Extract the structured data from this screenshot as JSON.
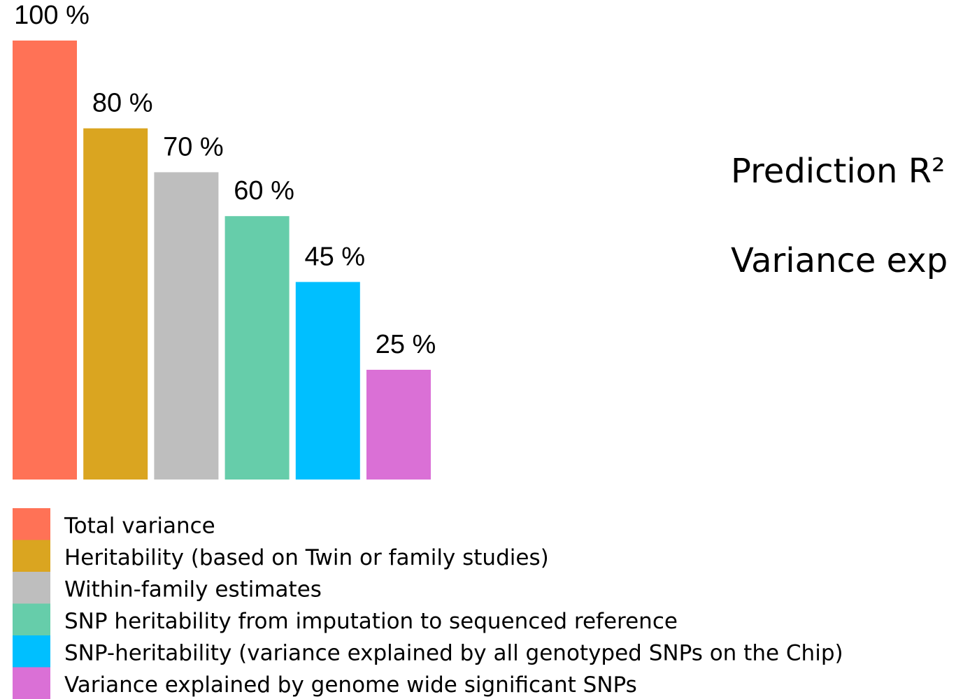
{
  "chart_data": {
    "type": "bar",
    "categories": [
      "Total variance",
      "Heritability (based on Twin or family studies)",
      "Within-family estimates",
      "SNP heritability from imputation to sequenced reference",
      "SNP-heritability (variance explained by all genotyped SNPs on the Chip)",
      "Variance explained by genome wide significant SNPs"
    ],
    "values": [
      100,
      80,
      70,
      60,
      45,
      25
    ],
    "value_labels": [
      "100 %",
      "80 %",
      "70 %",
      "60 %",
      "45 %",
      "25 %"
    ],
    "colors": [
      "#ff7256",
      "#daa520",
      "#bebebe",
      "#66cdaa",
      "#00bfff",
      "#da70d6"
    ],
    "ylim": [
      0,
      100
    ],
    "annotations": [
      "Prediction R²",
      "Variance exp"
    ]
  }
}
